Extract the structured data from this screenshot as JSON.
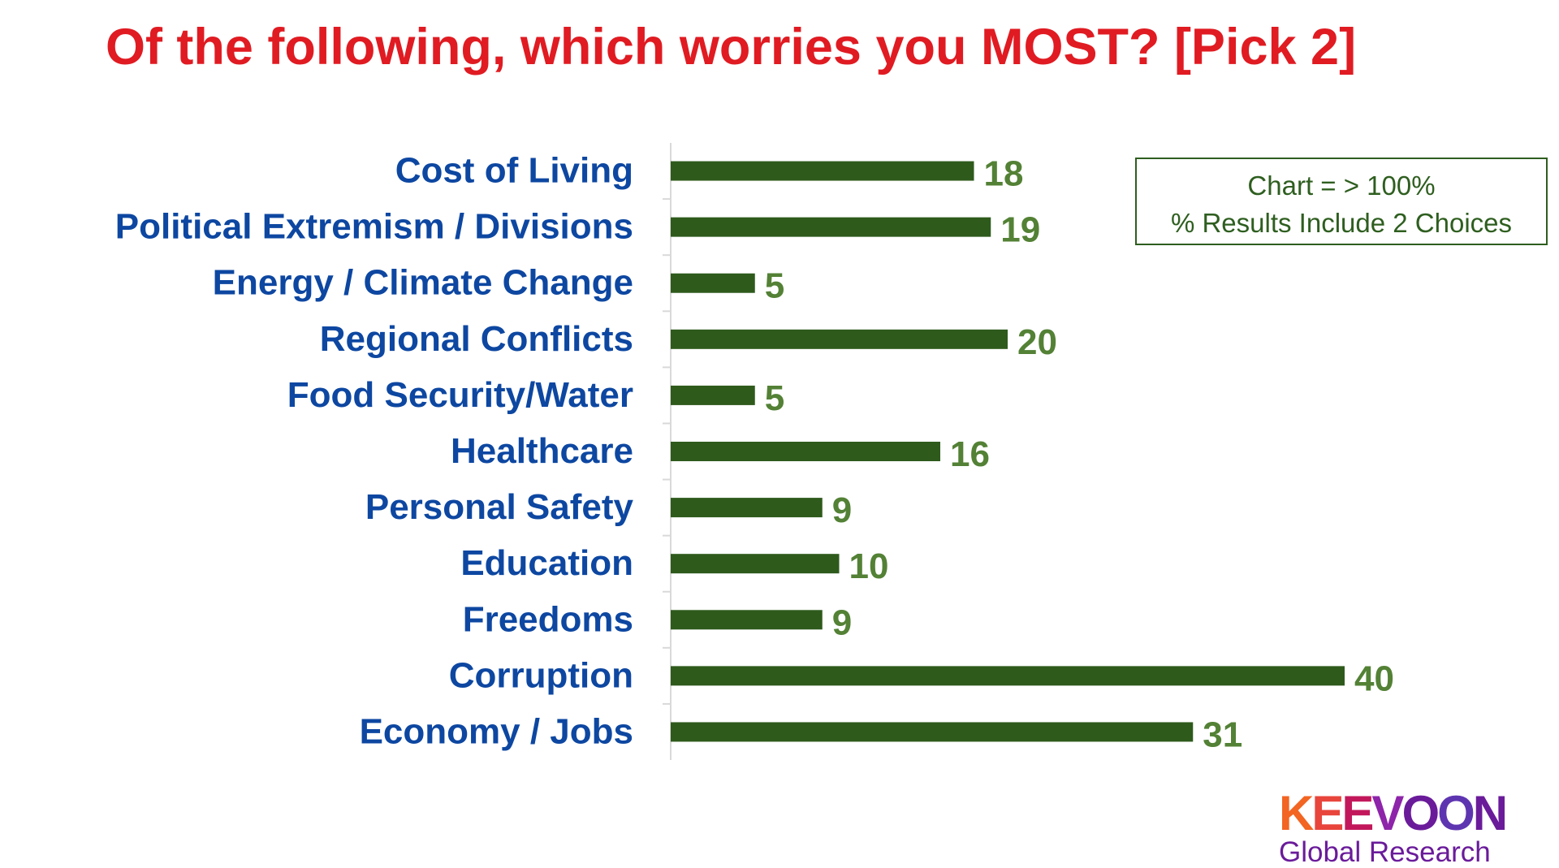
{
  "title": "Of the following, which worries you MOST?  [Pick 2]",
  "note": {
    "line1": "Chart = > 100%",
    "line2": "% Results Include 2 Choices"
  },
  "logo": {
    "name": "KEEVOON",
    "subtitle": "Global Research",
    "colors": [
      "#f26522",
      "#e8453c",
      "#c2185b",
      "#8e24aa",
      "#6a1b9a",
      "#5e35b1",
      "#6a1b9a"
    ]
  },
  "colors": {
    "bar": "#2e5a1c",
    "value_label": "#538135",
    "category_label": "#0d47a1",
    "title": "#e01b22"
  },
  "chart_data": {
    "type": "bar",
    "orientation": "horizontal",
    "categories": [
      "Cost of Living",
      "Political Extremism / Divisions",
      "Energy / Climate Change",
      "Regional Conflicts",
      "Food Security/Water",
      "Healthcare",
      "Personal Safety",
      "Education",
      "Freedoms",
      "Corruption",
      "Economy / Jobs"
    ],
    "values": [
      18,
      19,
      5,
      20,
      5,
      16,
      9,
      10,
      9,
      40,
      31
    ],
    "value_labels": [
      "18",
      "19",
      "5",
      "20",
      "5",
      "16",
      "9",
      "10",
      "9",
      "40",
      "31"
    ],
    "xlim": [
      0,
      40
    ],
    "grid": false,
    "legend": "none"
  }
}
